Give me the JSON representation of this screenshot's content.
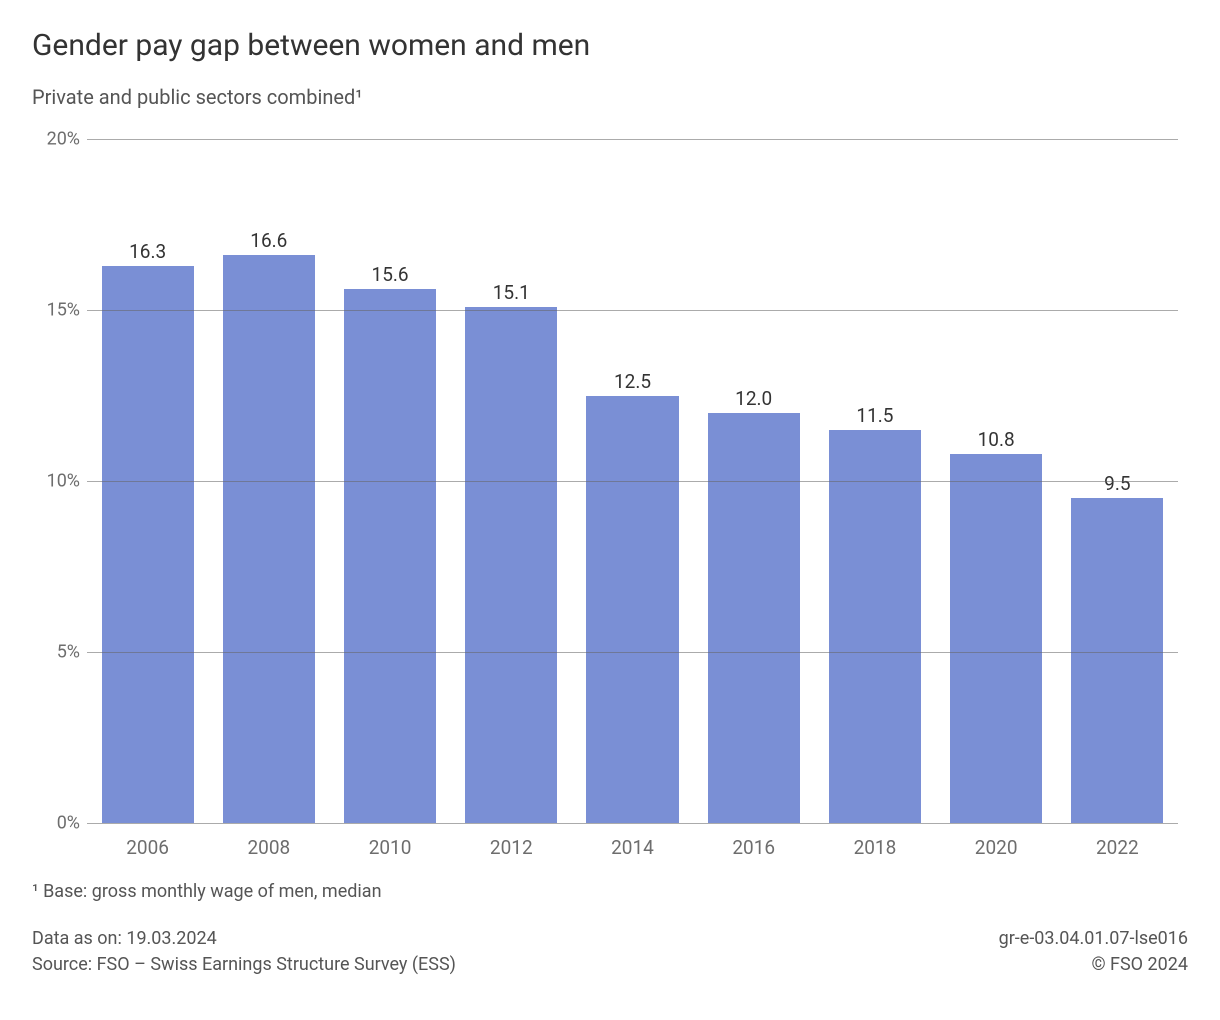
{
  "title": "Gender pay gap between women and men",
  "subtitle": "Private and public sectors combined¹",
  "chart": {
    "type": "bar",
    "categories": [
      "2006",
      "2008",
      "2010",
      "2012",
      "2014",
      "2016",
      "2018",
      "2020",
      "2022"
    ],
    "values": [
      16.3,
      16.6,
      15.6,
      15.1,
      12.5,
      12.0,
      11.5,
      10.8,
      9.5
    ],
    "value_labels": [
      "16.3",
      "16.6",
      "15.6",
      "15.1",
      "12.5",
      "12.0",
      "11.5",
      "10.8",
      "9.5"
    ],
    "bar_color": "#7a8fd5",
    "ylim": [
      0,
      20
    ],
    "yticks": [
      0,
      5,
      10,
      15,
      20
    ],
    "ytick_labels": [
      "0%",
      "5%",
      "10%",
      "15%",
      "20%"
    ],
    "grid_color": "#666666",
    "grid_opacity": 0.55,
    "background_color": "#ffffff",
    "bar_width_ratio": 0.76,
    "title_fontsize": 30,
    "label_fontsize": 19,
    "tick_fontsize": 18,
    "text_color": "#333333",
    "axis_text_color": "#6d6d6d"
  },
  "footnote": "¹ Base: gross monthly wage of men, median",
  "footer": {
    "data_as_on": "Data as on: 19.03.2024",
    "source": "Source: FSO – Swiss Earnings Structure Survey (ESS)",
    "right_code": "gr-e-03.04.01.07-lse016",
    "copyright": "© FSO 2024"
  }
}
